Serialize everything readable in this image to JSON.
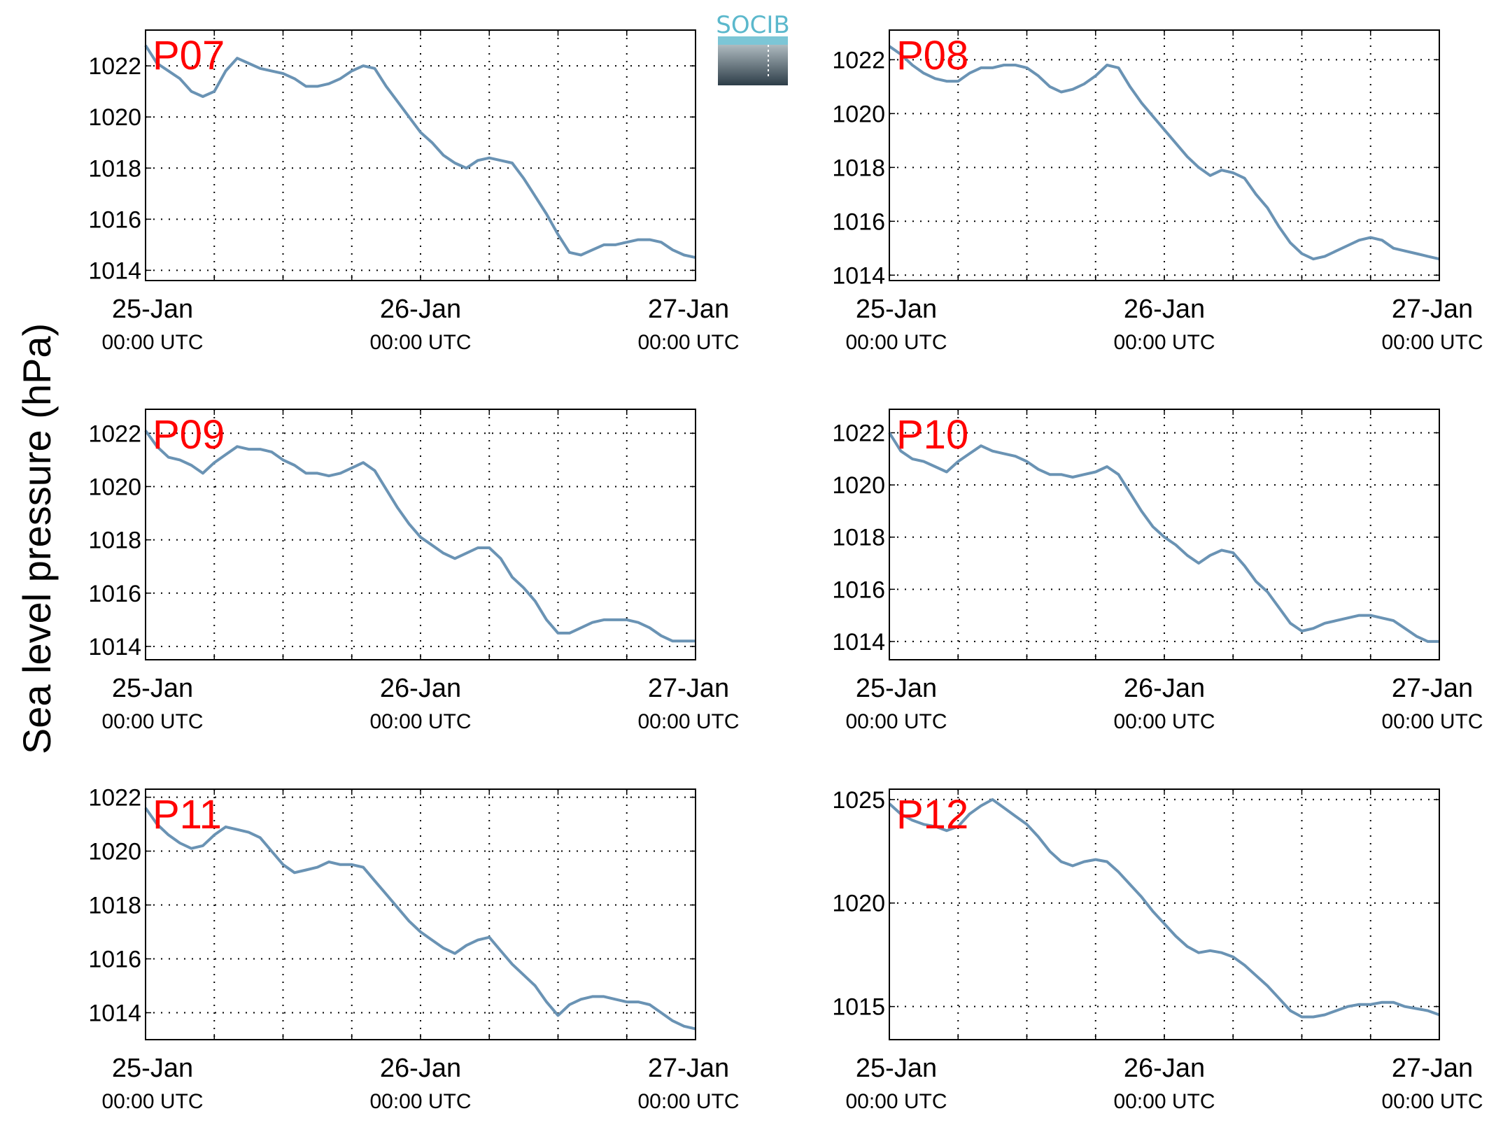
{
  "ylabel": "Sea level pressure (hPa)",
  "logo": {
    "text": "SOCIB",
    "colors": {
      "text": "#5bb8cc",
      "top": "#c9d4d8",
      "bottom": "#2d3d48"
    }
  },
  "line_color": "#6a93b4",
  "x_ticks": [
    {
      "day": "25-Jan",
      "time": "00:00 UTC"
    },
    {
      "day": "26-Jan",
      "time": "00:00 UTC"
    },
    {
      "day": "27-Jan",
      "time": "00:00 UTC"
    }
  ],
  "chart_data": [
    {
      "type": "line",
      "title": "P07",
      "xlim": [
        "2016-01-25 00:00",
        "2016-01-27 00:00"
      ],
      "ylim": [
        1013.6,
        1023.4
      ],
      "yticks": [
        1014,
        1016,
        1018,
        1020,
        1022
      ],
      "grid": true,
      "x_hours": [
        0,
        1,
        2,
        3,
        4,
        5,
        6,
        7,
        8,
        9,
        10,
        11,
        12,
        13,
        14,
        15,
        16,
        17,
        18,
        19,
        20,
        21,
        22,
        23,
        24,
        25,
        26,
        27,
        28,
        29,
        30,
        31,
        32,
        33,
        34,
        35,
        36,
        37,
        38,
        39,
        40,
        41,
        42,
        43,
        44,
        45,
        46,
        47,
        48
      ],
      "y": [
        1022.8,
        1022.1,
        1021.8,
        1021.5,
        1021.0,
        1020.8,
        1021.0,
        1021.8,
        1022.3,
        1022.1,
        1021.9,
        1021.8,
        1021.7,
        1021.5,
        1021.2,
        1021.2,
        1021.3,
        1021.5,
        1021.8,
        1022.0,
        1021.9,
        1021.2,
        1020.6,
        1020.0,
        1019.4,
        1019.0,
        1018.5,
        1018.2,
        1018.0,
        1018.3,
        1018.4,
        1018.3,
        1018.2,
        1017.6,
        1016.9,
        1016.2,
        1015.4,
        1014.7,
        1014.6,
        1014.8,
        1015.0,
        1015.0,
        1015.1,
        1015.2,
        1015.2,
        1015.1,
        1014.8,
        1014.6,
        1014.5
      ]
    },
    {
      "type": "line",
      "title": "P08",
      "xlim": [
        "2016-01-25 00:00",
        "2016-01-27 00:00"
      ],
      "ylim": [
        1013.8,
        1023.1
      ],
      "yticks": [
        1014,
        1016,
        1018,
        1020,
        1022
      ],
      "grid": true,
      "x_hours": [
        0,
        1,
        2,
        3,
        4,
        5,
        6,
        7,
        8,
        9,
        10,
        11,
        12,
        13,
        14,
        15,
        16,
        17,
        18,
        19,
        20,
        21,
        22,
        23,
        24,
        25,
        26,
        27,
        28,
        29,
        30,
        31,
        32,
        33,
        34,
        35,
        36,
        37,
        38,
        39,
        40,
        41,
        42,
        43,
        44,
        45,
        46,
        47,
        48
      ],
      "y": [
        1022.5,
        1022.2,
        1021.8,
        1021.5,
        1021.3,
        1021.2,
        1021.2,
        1021.5,
        1021.7,
        1021.7,
        1021.8,
        1021.8,
        1021.7,
        1021.4,
        1021.0,
        1020.8,
        1020.9,
        1021.1,
        1021.4,
        1021.8,
        1021.7,
        1021.0,
        1020.4,
        1019.9,
        1019.4,
        1018.9,
        1018.4,
        1018.0,
        1017.7,
        1017.9,
        1017.8,
        1017.6,
        1017.0,
        1016.5,
        1015.8,
        1015.2,
        1014.8,
        1014.6,
        1014.7,
        1014.9,
        1015.1,
        1015.3,
        1015.4,
        1015.3,
        1015.0,
        1014.9,
        1014.8,
        1014.7,
        1014.6
      ]
    },
    {
      "type": "line",
      "title": "P09",
      "xlim": [
        "2016-01-25 00:00",
        "2016-01-27 00:00"
      ],
      "ylim": [
        1013.5,
        1022.9
      ],
      "yticks": [
        1014,
        1016,
        1018,
        1020,
        1022
      ],
      "grid": true,
      "x_hours": [
        0,
        1,
        2,
        3,
        4,
        5,
        6,
        7,
        8,
        9,
        10,
        11,
        12,
        13,
        14,
        15,
        16,
        17,
        18,
        19,
        20,
        21,
        22,
        23,
        24,
        25,
        26,
        27,
        28,
        29,
        30,
        31,
        32,
        33,
        34,
        35,
        36,
        37,
        38,
        39,
        40,
        41,
        42,
        43,
        44,
        45,
        46,
        47,
        48
      ],
      "y": [
        1022.1,
        1021.5,
        1021.1,
        1021.0,
        1020.8,
        1020.5,
        1020.9,
        1021.2,
        1021.5,
        1021.4,
        1021.4,
        1021.3,
        1021.0,
        1020.8,
        1020.5,
        1020.5,
        1020.4,
        1020.5,
        1020.7,
        1020.9,
        1020.6,
        1019.9,
        1019.2,
        1018.6,
        1018.1,
        1017.8,
        1017.5,
        1017.3,
        1017.5,
        1017.7,
        1017.7,
        1017.3,
        1016.6,
        1016.2,
        1015.7,
        1015.0,
        1014.5,
        1014.5,
        1014.7,
        1014.9,
        1015.0,
        1015.0,
        1015.0,
        1014.9,
        1014.7,
        1014.4,
        1014.2,
        1014.2,
        1014.2
      ]
    },
    {
      "type": "line",
      "title": "P10",
      "xlim": [
        "2016-01-25 00:00",
        "2016-01-27 00:00"
      ],
      "ylim": [
        1013.3,
        1022.9
      ],
      "yticks": [
        1014,
        1016,
        1018,
        1020,
        1022
      ],
      "grid": true,
      "x_hours": [
        0,
        1,
        2,
        3,
        4,
        5,
        6,
        7,
        8,
        9,
        10,
        11,
        12,
        13,
        14,
        15,
        16,
        17,
        18,
        19,
        20,
        21,
        22,
        23,
        24,
        25,
        26,
        27,
        28,
        29,
        30,
        31,
        32,
        33,
        34,
        35,
        36,
        37,
        38,
        39,
        40,
        41,
        42,
        43,
        44,
        45,
        46,
        47,
        48
      ],
      "y": [
        1022.0,
        1021.3,
        1021.0,
        1020.9,
        1020.7,
        1020.5,
        1020.9,
        1021.2,
        1021.5,
        1021.3,
        1021.2,
        1021.1,
        1020.9,
        1020.6,
        1020.4,
        1020.4,
        1020.3,
        1020.4,
        1020.5,
        1020.7,
        1020.4,
        1019.7,
        1019.0,
        1018.4,
        1018.0,
        1017.7,
        1017.3,
        1017.0,
        1017.3,
        1017.5,
        1017.4,
        1016.9,
        1016.3,
        1015.9,
        1015.3,
        1014.7,
        1014.4,
        1014.5,
        1014.7,
        1014.8,
        1014.9,
        1015.0,
        1015.0,
        1014.9,
        1014.8,
        1014.5,
        1014.2,
        1014.0,
        1014.0
      ]
    },
    {
      "type": "line",
      "title": "P11",
      "xlim": [
        "2016-01-25 00:00",
        "2016-01-27 00:00"
      ],
      "ylim": [
        1013.0,
        1022.3
      ],
      "yticks": [
        1014,
        1016,
        1018,
        1020,
        1022
      ],
      "grid": true,
      "x_hours": [
        0,
        1,
        2,
        3,
        4,
        5,
        6,
        7,
        8,
        9,
        10,
        11,
        12,
        13,
        14,
        15,
        16,
        17,
        18,
        19,
        20,
        21,
        22,
        23,
        24,
        25,
        26,
        27,
        28,
        29,
        30,
        31,
        32,
        33,
        34,
        35,
        36,
        37,
        38,
        39,
        40,
        41,
        42,
        43,
        44,
        45,
        46,
        47,
        48
      ],
      "y": [
        1021.6,
        1021.0,
        1020.6,
        1020.3,
        1020.1,
        1020.2,
        1020.6,
        1020.9,
        1020.8,
        1020.7,
        1020.5,
        1020.0,
        1019.5,
        1019.2,
        1019.3,
        1019.4,
        1019.6,
        1019.5,
        1019.5,
        1019.4,
        1018.9,
        1018.4,
        1017.9,
        1017.4,
        1017.0,
        1016.7,
        1016.4,
        1016.2,
        1016.5,
        1016.7,
        1016.8,
        1016.3,
        1015.8,
        1015.4,
        1015.0,
        1014.4,
        1013.9,
        1014.3,
        1014.5,
        1014.6,
        1014.6,
        1014.5,
        1014.4,
        1014.4,
        1014.3,
        1014.0,
        1013.7,
        1013.5,
        1013.4
      ]
    },
    {
      "type": "line",
      "title": "P12",
      "xlim": [
        "2016-01-25 00:00",
        "2016-01-27 00:00"
      ],
      "ylim": [
        1013.4,
        1025.5
      ],
      "yticks": [
        1015,
        1020,
        1025
      ],
      "grid": true,
      "x_hours": [
        0,
        1,
        2,
        3,
        4,
        5,
        6,
        7,
        8,
        9,
        10,
        11,
        12,
        13,
        14,
        15,
        16,
        17,
        18,
        19,
        20,
        21,
        22,
        23,
        24,
        25,
        26,
        27,
        28,
        29,
        30,
        31,
        32,
        33,
        34,
        35,
        36,
        37,
        38,
        39,
        40,
        41,
        42,
        43,
        44,
        45,
        46,
        47,
        48
      ],
      "y": [
        1024.8,
        1024.3,
        1024.0,
        1023.8,
        1023.7,
        1023.5,
        1023.7,
        1024.3,
        1024.7,
        1025.0,
        1024.6,
        1024.2,
        1023.8,
        1023.2,
        1022.5,
        1022.0,
        1021.8,
        1022.0,
        1022.1,
        1022.0,
        1021.5,
        1020.9,
        1020.3,
        1019.6,
        1019.0,
        1018.4,
        1017.9,
        1017.6,
        1017.7,
        1017.6,
        1017.4,
        1017.0,
        1016.5,
        1016.0,
        1015.4,
        1014.8,
        1014.5,
        1014.5,
        1014.6,
        1014.8,
        1015.0,
        1015.1,
        1015.1,
        1015.2,
        1015.2,
        1015.0,
        1014.9,
        1014.8,
        1014.6
      ]
    }
  ]
}
